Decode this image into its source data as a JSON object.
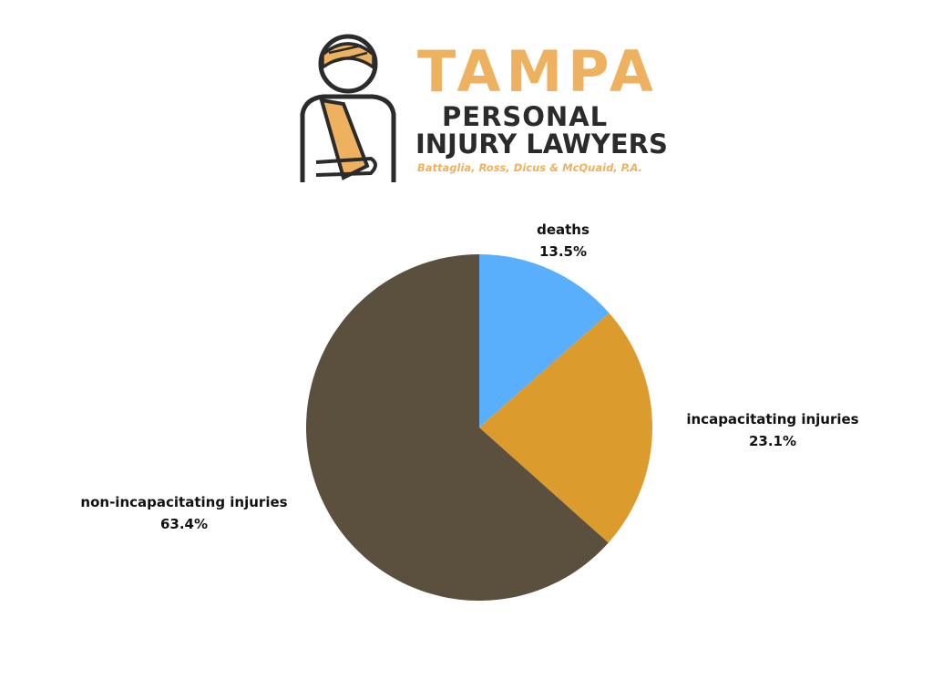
{
  "logo": {
    "title": "TAMPA",
    "line2": "PERSONAL",
    "line3": "INJURY LAWYERS",
    "firm": "Battaglia, Ross, Dicus & McQuaid, P.A.",
    "accent_color": "#eeb15f",
    "ink_color": "#2b2b2b",
    "icon": "injured-person-with-sling-icon"
  },
  "chart_data": {
    "type": "pie",
    "title": "",
    "start_angle_deg": 0,
    "direction": "clockwise",
    "slices": [
      {
        "label": "deaths",
        "value": 13.5,
        "display": "13.5%",
        "color": "#5aaffc"
      },
      {
        "label": "incapacitating injuries",
        "value": 23.1,
        "display": "23.1%",
        "color": "#dc9c2d"
      },
      {
        "label": "non-incapacitating injuries",
        "value": 63.4,
        "display": "63.4%",
        "color": "#5b4f3e"
      }
    ]
  }
}
